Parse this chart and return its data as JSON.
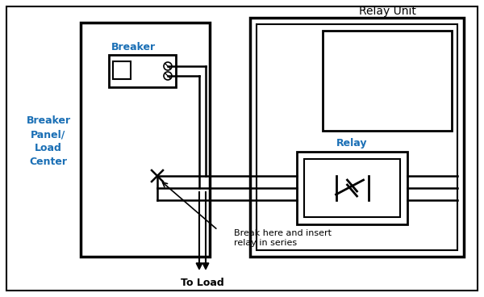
{
  "bg_color": "#ffffff",
  "line_color": "#000000",
  "text_color": "#000000",
  "label_color": "#1a6fb5",
  "fig_width": 6.0,
  "fig_height": 3.68,
  "relay_unit_label": "Relay Unit",
  "breaker_panel_label": "Breaker\nPanel/\nLoad\nCenter",
  "breaker_label": "Breaker",
  "relay_label": "Relay",
  "to_load_label": "To Load",
  "annotation_label": "Break here and insert\nrelay in series"
}
